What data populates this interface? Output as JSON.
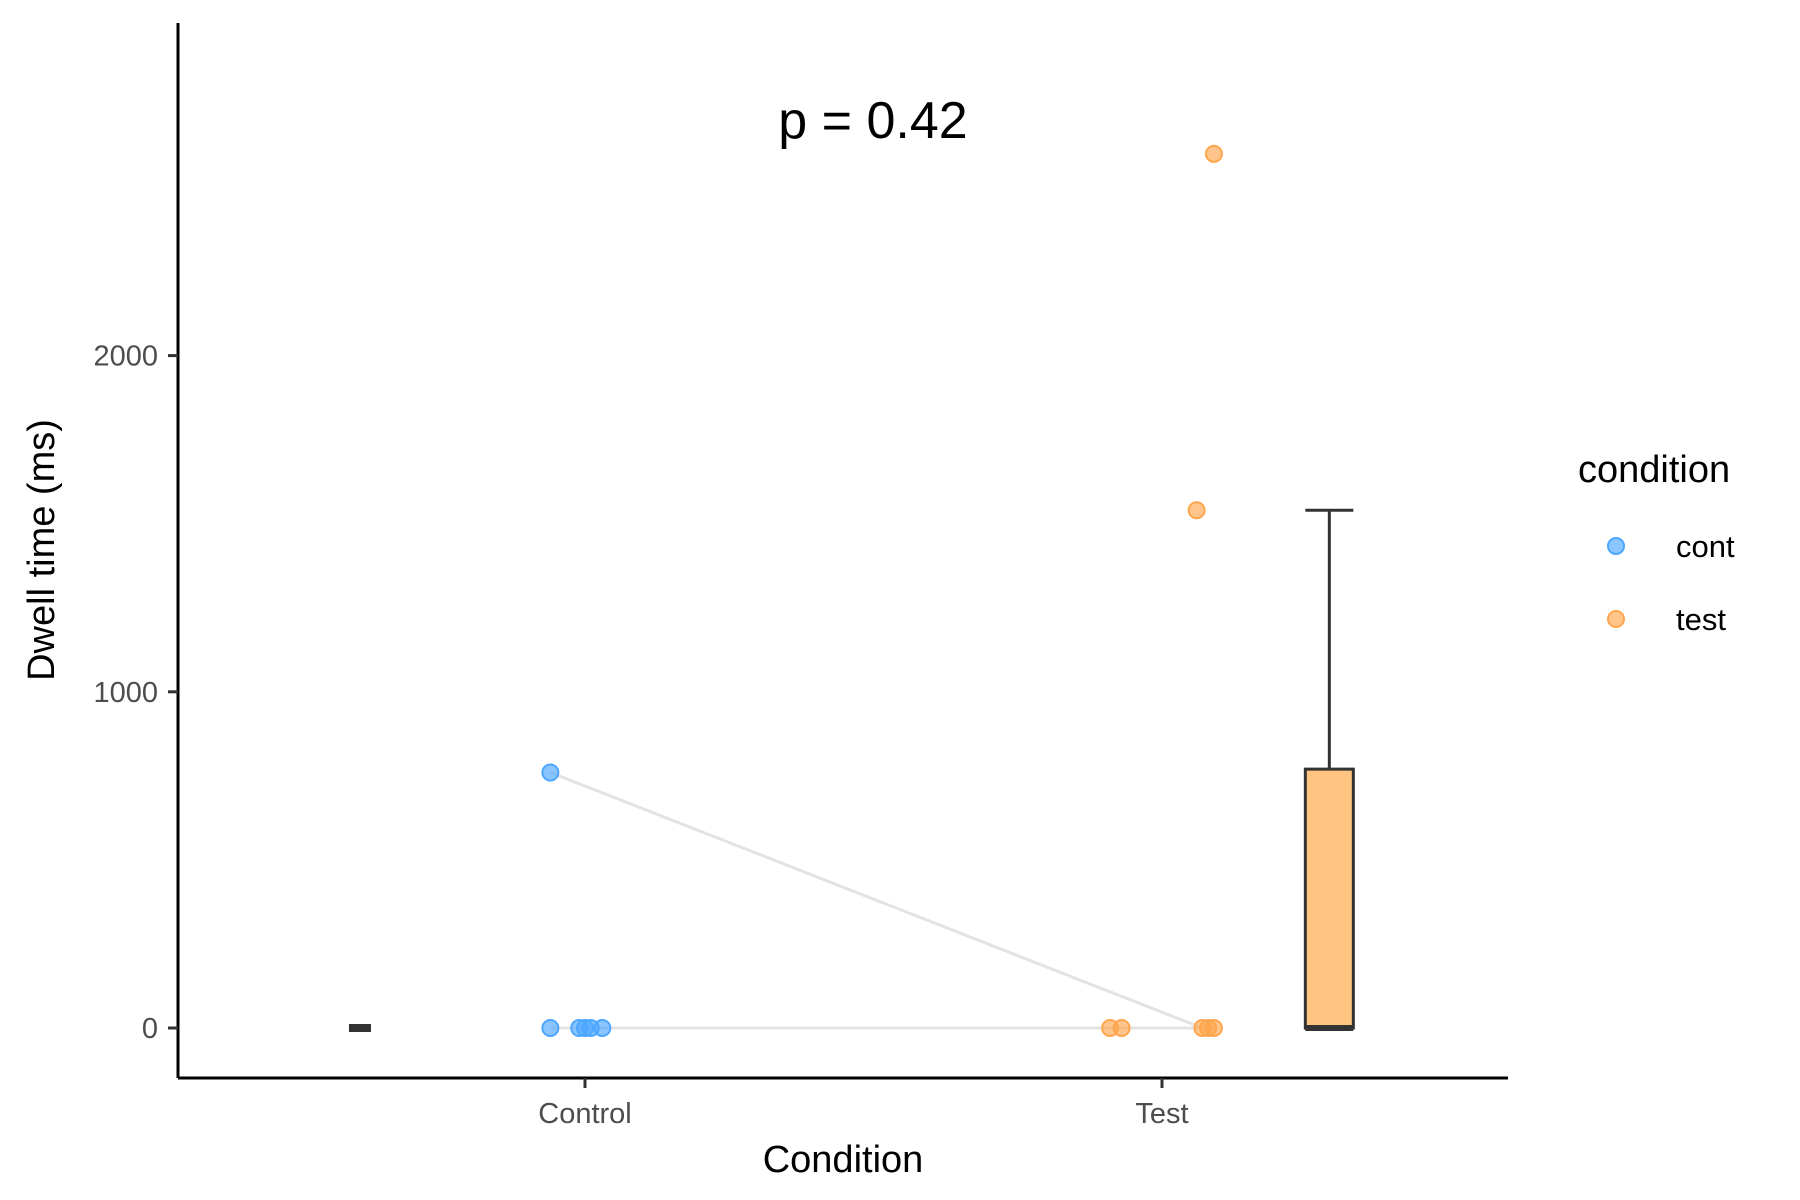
{
  "chart_data": {
    "type": "scatter",
    "annotation": "p = 0.42",
    "xlabel": "Condition",
    "ylabel": "Dwell time (ms)",
    "categories": [
      "Control",
      "Test"
    ],
    "ylim": [
      -140,
      2950
    ],
    "yticks": [
      0,
      1000,
      2000
    ],
    "grid": false,
    "legend": {
      "title": "condition",
      "position": "right",
      "entries": [
        {
          "label": "cont",
          "color": "#4da6ff"
        },
        {
          "label": "test",
          "color": "#ffa64d"
        }
      ]
    },
    "series": [
      {
        "name": "cont",
        "category": "Control",
        "color": "#4da6ff",
        "points": [
          {
            "x": -0.06,
            "y": 760
          },
          {
            "x": -0.06,
            "y": 0
          },
          {
            "x": -0.01,
            "y": 0
          },
          {
            "x": 0.0,
            "y": 0
          },
          {
            "x": 0.01,
            "y": 0
          },
          {
            "x": 0.03,
            "y": 0
          }
        ]
      },
      {
        "name": "test",
        "category": "Test",
        "color": "#ffa64d",
        "points": [
          {
            "x": 1.09,
            "y": 2600
          },
          {
            "x": 1.06,
            "y": 1540
          },
          {
            "x": 0.91,
            "y": 0
          },
          {
            "x": 0.93,
            "y": 0
          },
          {
            "x": 1.07,
            "y": 0
          },
          {
            "x": 1.08,
            "y": 0
          },
          {
            "x": 1.09,
            "y": 0
          }
        ]
      }
    ],
    "paired_lines": [
      {
        "x1": -0.06,
        "y1": 760,
        "x2": 1.07,
        "y2": 0
      },
      {
        "x1": -0.06,
        "y1": 0,
        "x2": 1.09,
        "y2": 0
      }
    ],
    "boxplots": [
      {
        "x": -0.39,
        "min": 0,
        "q1": 0,
        "median": 0,
        "q3": 0,
        "max": 0,
        "fill": "#4da6ff"
      },
      {
        "x": 1.29,
        "min": 0,
        "q1": 0,
        "median": 0,
        "q3": 770,
        "max": 1540,
        "fill": "#ffc480"
      }
    ]
  }
}
